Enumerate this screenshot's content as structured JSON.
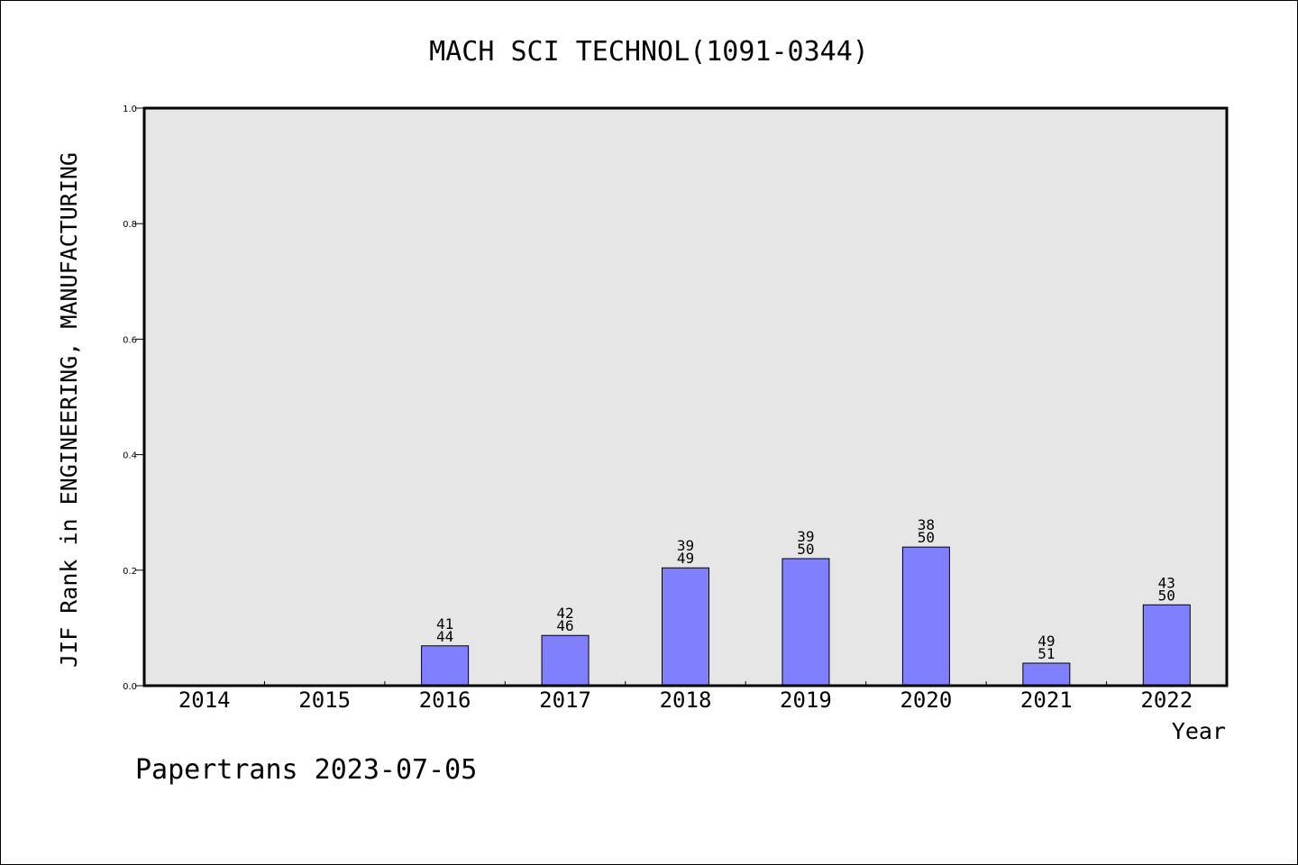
{
  "chart_data": {
    "type": "bar",
    "title": "MACH SCI TECHNOL(1091-0344)",
    "xlabel": "Year",
    "ylabel": "JIF Rank in ENGINEERING, MANUFACTURING",
    "categories": [
      "2014",
      "2015",
      "2016",
      "2017",
      "2018",
      "2019",
      "2020",
      "2021",
      "2022"
    ],
    "values": [
      null,
      null,
      0.069,
      0.087,
      0.204,
      0.22,
      0.24,
      0.039,
      0.14
    ],
    "rank": [
      null,
      null,
      "41",
      "42",
      "39",
      "39",
      "38",
      "49",
      "43"
    ],
    "total": [
      null,
      null,
      "44",
      "46",
      "49",
      "50",
      "50",
      "51",
      "50"
    ],
    "ylim": [
      0,
      1.0
    ],
    "yticks": [
      "0.0",
      "0.2",
      "0.4",
      "0.6",
      "0.8",
      "1.0"
    ],
    "grid": false,
    "bar_color": "#8080ff",
    "plot_background": "#e6e6e6"
  },
  "footer": "Papertrans 2023-07-05"
}
